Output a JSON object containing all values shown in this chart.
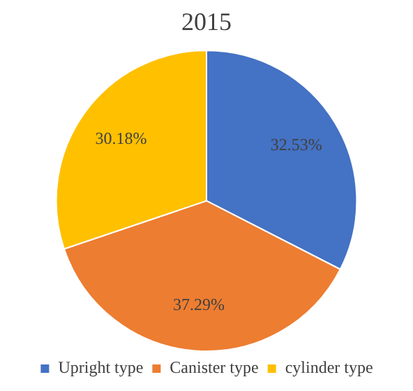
{
  "chart_data": {
    "type": "pie",
    "title": "2015",
    "categories": [
      "Upright type",
      "Canister type",
      "cylinder type"
    ],
    "values": [
      32.53,
      37.29,
      30.18
    ],
    "colors": [
      "#4472c4",
      "#ed7d31",
      "#ffc000"
    ],
    "value_labels": [
      "32.53%",
      "37.29%",
      "30.18%"
    ],
    "legend": "bottom"
  }
}
